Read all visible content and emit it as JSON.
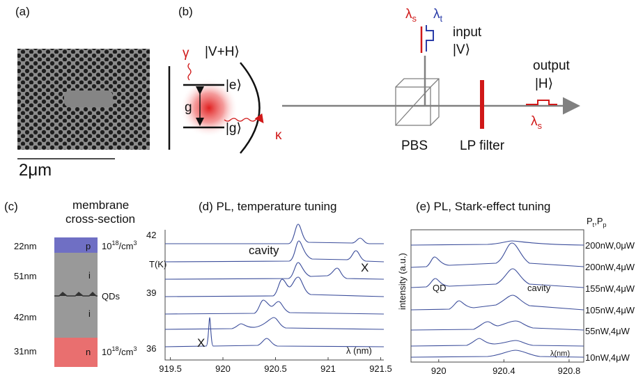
{
  "panel_a": {
    "label": "(a)",
    "scale_bar": "2μm"
  },
  "panel_b": {
    "label": "(b)",
    "gamma": "γ",
    "kappa": "κ",
    "coupling": "g",
    "states": [
      "|V+H⟩",
      "|e⟩",
      "|g⟩"
    ],
    "signal": {
      "symbol": "λ",
      "sub": "s"
    },
    "trigger": {
      "symbol": "λ",
      "sub": "t"
    },
    "input": "input",
    "input_state": "|V⟩",
    "output": "output",
    "output_state": "|H⟩",
    "pbs": "PBS",
    "filter": "LP filter"
  },
  "panel_c": {
    "label": "(c)",
    "title": [
      "membrane",
      "cross-section"
    ],
    "layers": [
      {
        "thickness": "22nm",
        "type": "p"
      },
      {
        "thickness": "51nm",
        "type": "i"
      },
      {
        "thickness": "42nm",
        "type": "i"
      },
      {
        "thickness": "31nm",
        "type": "n"
      }
    ],
    "doping": {
      "base": "10",
      "exp": "18",
      "unit": "/cm",
      "unit_exp": "3"
    },
    "qds": "QDs"
  },
  "panel_d": {
    "title": "(d) PL, temperature tuning",
    "y_label": "T(K)",
    "temperatures": [
      42,
      39,
      36
    ],
    "x_label": "λ (nm)",
    "annotations": [
      "cavity",
      "X",
      "X"
    ],
    "xlim": [
      919.45,
      921.53
    ],
    "xticks": [
      919.5,
      920,
      920.5,
      921,
      921.5
    ]
  },
  "panel_e": {
    "title": "(e) PL, Stark-effect tuning",
    "y_label": "intensity (a.u.)",
    "x_label": "λ(nm)",
    "annotations": [
      "QD",
      "cavity"
    ],
    "power_header": {
      "a": "P",
      "a_sub": "t",
      "sep": ",",
      "b": "P",
      "b_sub": "p"
    },
    "powers": [
      "200nW,0μW",
      "200nW,4μW",
      "155nW,4μW",
      "105nW,4μW",
      "55nW,4μW",
      "10nW,4μW"
    ],
    "xlim": [
      919.83,
      920.89
    ],
    "xticks": [
      920,
      920.4,
      920.8
    ]
  }
}
